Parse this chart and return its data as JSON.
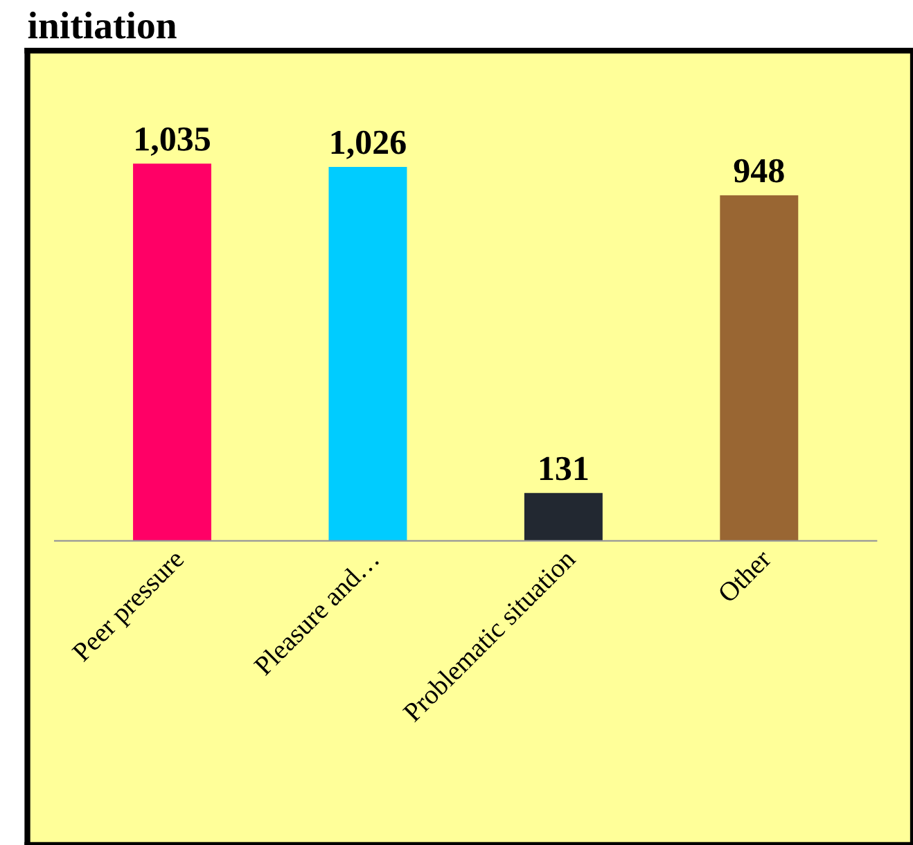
{
  "chart_data": {
    "type": "bar",
    "title": "initiation",
    "categories": [
      "Peer pressure",
      "Pleasure and…",
      "Problematic situation",
      "Other"
    ],
    "values": [
      1035,
      1026,
      131,
      948
    ],
    "colors": [
      "#ff0066",
      "#00ccff",
      "#222831",
      "#996633"
    ],
    "value_labels": [
      "1,035",
      "1,026",
      "131",
      "948"
    ],
    "grid": false,
    "legend": false
  }
}
